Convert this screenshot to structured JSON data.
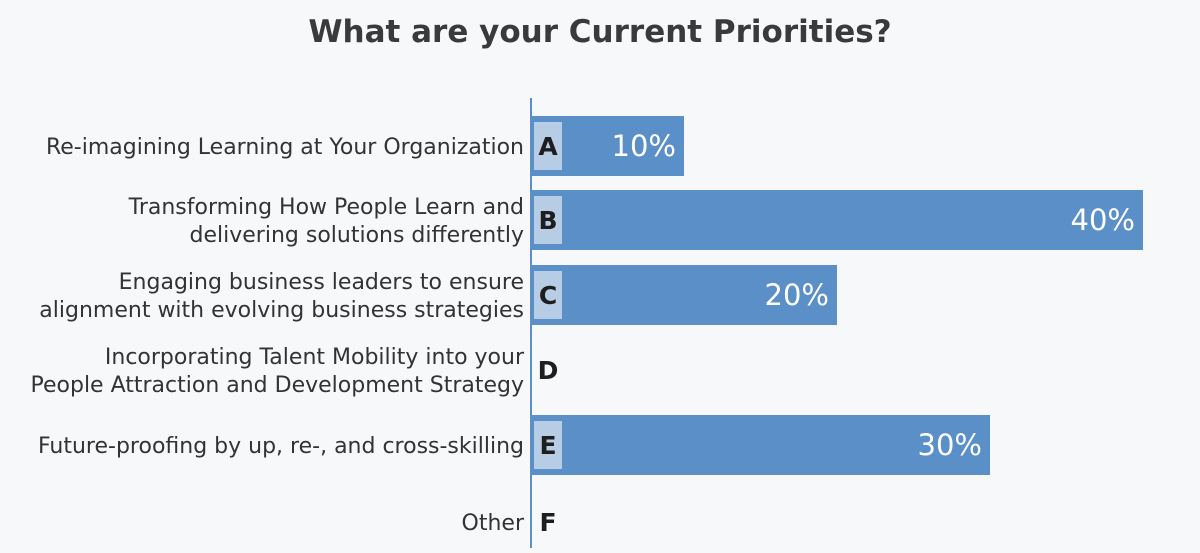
{
  "chart_data": {
    "type": "bar",
    "orientation": "horizontal",
    "title": "What are your Current Priorities?",
    "categories": [
      {
        "lines": [
          "Re-imagining Learning at Your Organization"
        ],
        "letter": "A"
      },
      {
        "lines": [
          "Transforming How People Learn and",
          "delivering solutions differently"
        ],
        "letter": "B"
      },
      {
        "lines": [
          "Engaging business leaders to ensure",
          "alignment with evolving business strategies"
        ],
        "letter": "C"
      },
      {
        "lines": [
          "Incorporating Talent Mobility into your",
          "People Attraction and Development Strategy"
        ],
        "letter": "D"
      },
      {
        "lines": [
          "Future-proofing by up, re-, and cross-skilling"
        ],
        "letter": "E"
      },
      {
        "lines": [
          "Other"
        ],
        "letter": "F"
      }
    ],
    "values": [
      10,
      40,
      20,
      0,
      30,
      0
    ],
    "value_labels": [
      "10%",
      "40%",
      "20%",
      "",
      "30%",
      ""
    ],
    "xlim": [
      0,
      40
    ],
    "grid": false,
    "legend": "none",
    "colors": {
      "bar": "#5b8fc7",
      "letter_box": "#b7cde6",
      "axis": "#5b8fc7",
      "title": "#3a3a3a",
      "label": "#333333"
    }
  }
}
